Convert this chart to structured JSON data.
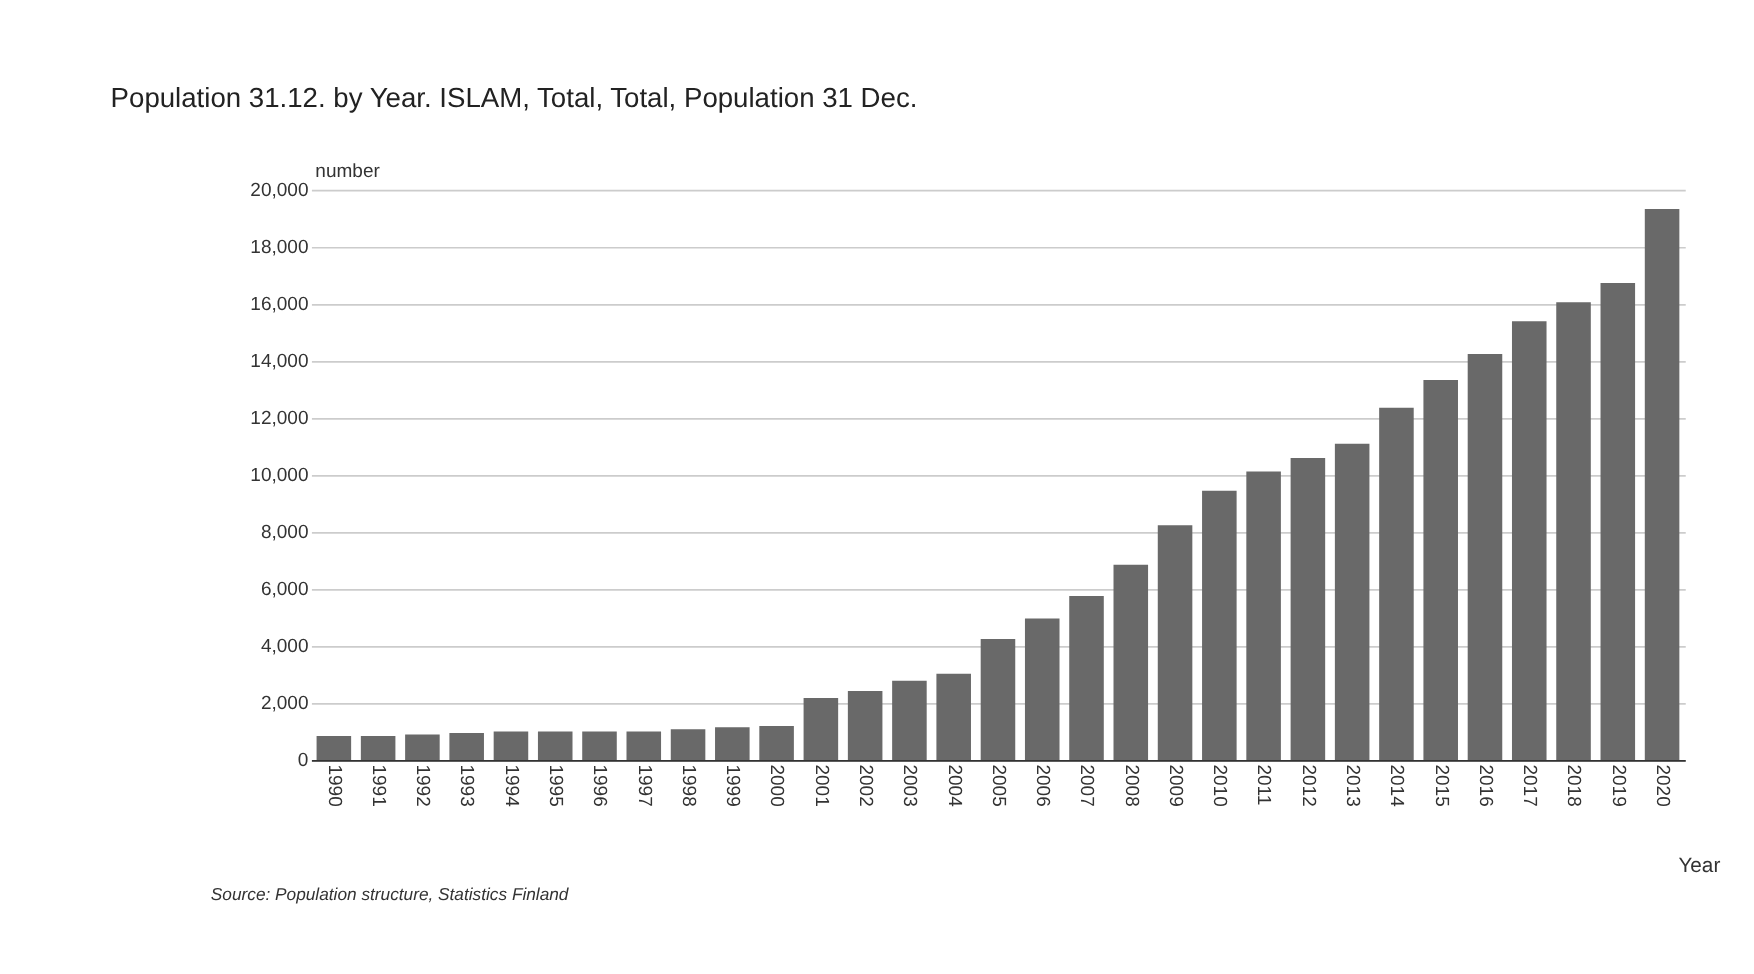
{
  "chart_data": {
    "type": "bar",
    "title": "Population 31.12. by Year. ISLAM, Total, Total, Population 31 Dec.",
    "xlabel": "Year",
    "ylabel": "number",
    "categories": [
      "1990",
      "1991",
      "1992",
      "1993",
      "1994",
      "1995",
      "1996",
      "1997",
      "1998",
      "1999",
      "2000",
      "2001",
      "2002",
      "2003",
      "2004",
      "2005",
      "2006",
      "2007",
      "2008",
      "2009",
      "2010",
      "2011",
      "2012",
      "2013",
      "2014",
      "2015",
      "2016",
      "2017",
      "2018",
      "2019",
      "2020"
    ],
    "values": [
      850,
      850,
      900,
      950,
      1000,
      1000,
      1000,
      1000,
      1080,
      1150,
      1200,
      2180,
      2420,
      2780,
      3030,
      4250,
      4970,
      5760,
      6850,
      8240,
      9450,
      10120,
      10600,
      11100,
      12360,
      13330,
      14240,
      15390,
      16060,
      16730,
      19330
    ],
    "color": "#696969",
    "ylim": [
      0,
      20000
    ],
    "yticks": [
      0,
      {
        "value": 2000,
        "label": "2,000"
      },
      {
        "value": 4000,
        "label": "4,000"
      },
      {
        "value": 6000,
        "label": "6,000"
      },
      {
        "value": 8000,
        "label": "8,000"
      },
      {
        "value": 10000,
        "label": "10,000"
      },
      {
        "value": 12000,
        "label": "12,000"
      },
      {
        "value": 14000,
        "label": "14,000"
      },
      {
        "value": 16000,
        "label": "16,000"
      },
      {
        "value": 18000,
        "label": "18,000"
      },
      {
        "value": 20000,
        "label": "20,000"
      }
    ],
    "grid": "y",
    "annotations": [
      "Source: Population structure, Statistics Finland"
    ]
  }
}
